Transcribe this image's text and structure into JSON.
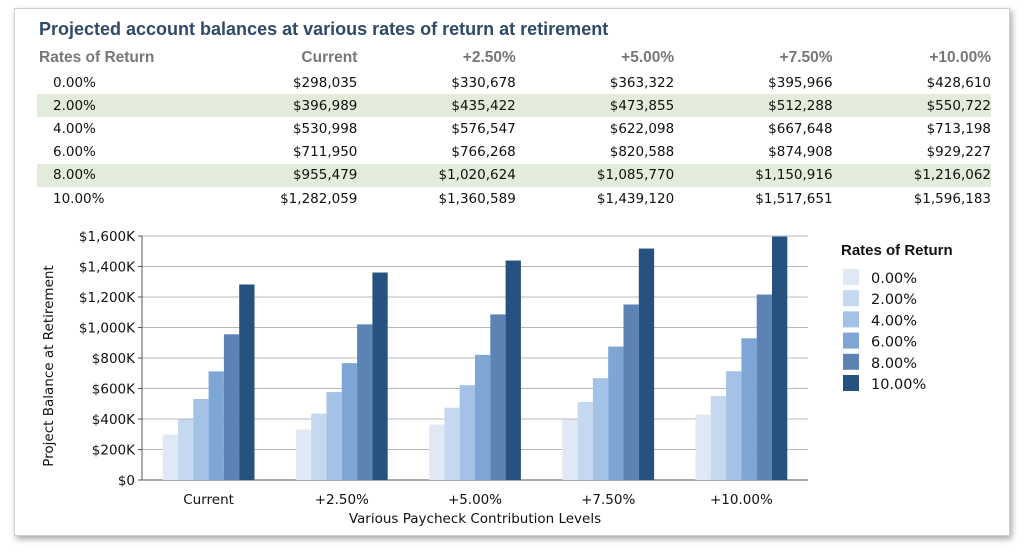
{
  "title": "Projected account balances at various rates of return at retirement",
  "table": {
    "headers": [
      "Rates of Return",
      "Current",
      "+2.50%",
      "+5.00%",
      "+7.50%",
      "+10.00%"
    ],
    "rows": [
      [
        "0.00%",
        "$298,035",
        "$330,678",
        "$363,322",
        "$395,966",
        "$428,610"
      ],
      [
        "2.00%",
        "$396,989",
        "$435,422",
        "$473,855",
        "$512,288",
        "$550,722"
      ],
      [
        "4.00%",
        "$530,998",
        "$576,547",
        "$622,098",
        "$667,648",
        "$713,198"
      ],
      [
        "6.00%",
        "$711,950",
        "$766,268",
        "$820,588",
        "$874,908",
        "$929,227"
      ],
      [
        "8.00%",
        "$955,479",
        "$1,020,624",
        "$1,085,770",
        "$1,150,916",
        "$1,216,062"
      ],
      [
        "10.00%",
        "$1,282,059",
        "$1,360,589",
        "$1,439,120",
        "$1,517,651",
        "$1,596,183"
      ]
    ],
    "highlighted_rows": [
      1,
      4
    ],
    "highlight_color": "#e3ecda"
  },
  "chart_data": {
    "type": "bar",
    "xlabel": "Various Paycheck Contribution Levels",
    "ylabel": "Project Balance at Retirement",
    "categories": [
      "Current",
      "+2.50%",
      "+5.00%",
      "+7.50%",
      "+10.00%"
    ],
    "ylim": [
      0,
      1600000
    ],
    "yticks": [
      0,
      200000,
      400000,
      600000,
      800000,
      1000000,
      1200000,
      1400000,
      1600000
    ],
    "ytick_labels": [
      "$0",
      "$200K",
      "$400K",
      "$600K",
      "$800K",
      "$1,000K",
      "$1,200K",
      "$1,400K",
      "$1,600K"
    ],
    "grid": true,
    "legend_title": "Rates of Return",
    "legend_position": "right",
    "series": [
      {
        "name": "0.00%",
        "color": "#dfe9f6",
        "values": [
          298035,
          330678,
          363322,
          395966,
          428610
        ]
      },
      {
        "name": "2.00%",
        "color": "#c4d8ef",
        "values": [
          396989,
          435422,
          473855,
          512288,
          550722
        ]
      },
      {
        "name": "4.00%",
        "color": "#a4c2e6",
        "values": [
          530998,
          576547,
          622098,
          667648,
          713198
        ]
      },
      {
        "name": "6.00%",
        "color": "#7da6d5",
        "values": [
          711950,
          766268,
          820588,
          874908,
          929227
        ]
      },
      {
        "name": "8.00%",
        "color": "#5b83b3",
        "values": [
          955479,
          1020624,
          1085770,
          1150916,
          1216062
        ]
      },
      {
        "name": "10.00%",
        "color": "#27527f",
        "values": [
          1282059,
          1360589,
          1439120,
          1517651,
          1596183
        ]
      }
    ]
  }
}
